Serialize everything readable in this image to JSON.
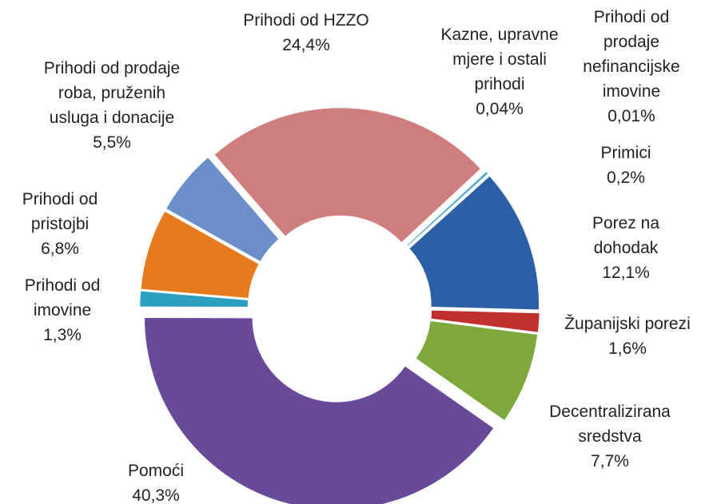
{
  "chart_data": {
    "type": "donut",
    "categories": [
      "Kazne, upravne mjere i ostali prihodi",
      "Prihodi od prodaje nefinancijske imovine",
      "Primici",
      "Porez na dohodak",
      "Županijski porezi",
      "Decentralizirana sredstva",
      "Pomoći",
      "Prihodi od imovine",
      "Prihodi od pristojbi",
      "Prihodi od prodaje roba, pruženih usluga i donacije",
      "Prihodi od HZZO"
    ],
    "values": [
      0.04,
      0.01,
      0.2,
      12.1,
      1.6,
      7.7,
      40.3,
      1.3,
      6.8,
      5.5,
      24.4
    ],
    "value_labels": [
      "0,04%",
      "0,01%",
      "0,2%",
      "12,1%",
      "1,6%",
      "7,7%",
      "40,3%",
      "1,3%",
      "6,8%",
      "5,5%",
      "24,4%"
    ],
    "colors": [
      "#8db4d6",
      "#a9c4e4",
      "#4aa8c8",
      "#2d5fa6",
      "#c0312d",
      "#7da83c",
      "#684a99",
      "#2b9fc0",
      "#e87a1e",
      "#6c8fca",
      "#cf7d7d"
    ]
  }
}
